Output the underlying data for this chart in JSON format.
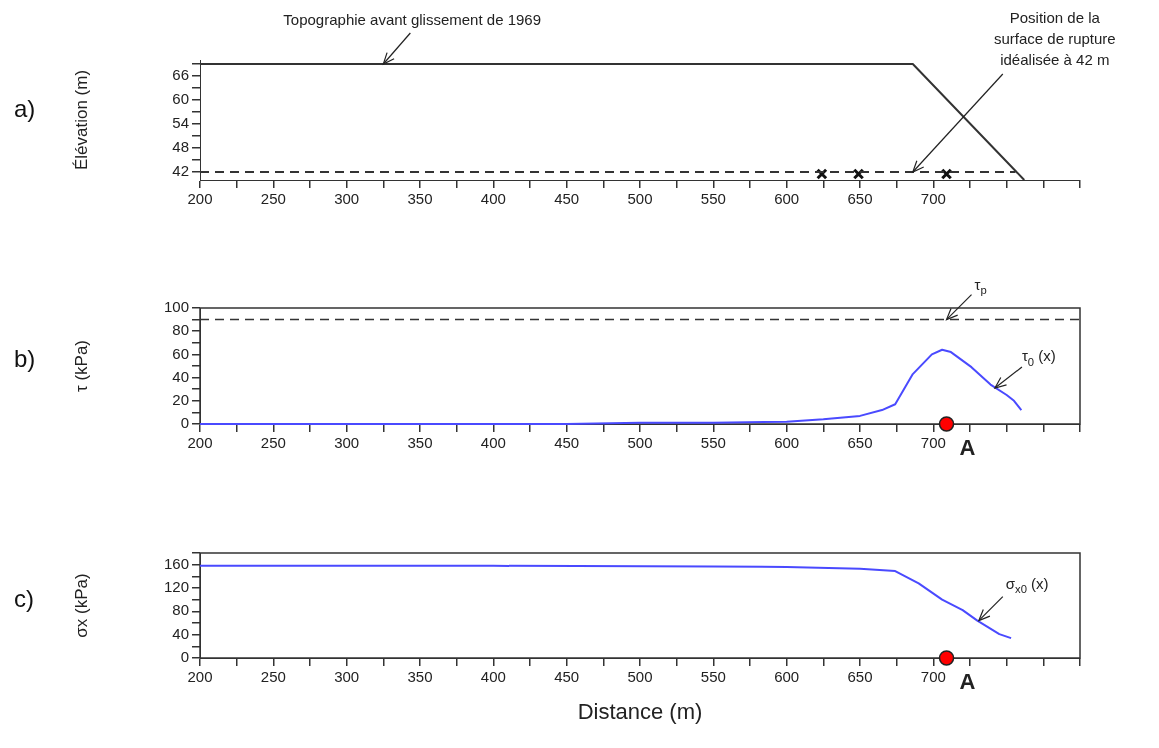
{
  "chart_data": [
    {
      "type": "line",
      "ylabel": "Élévation (m)",
      "xlim": [
        200,
        800
      ],
      "ylim": [
        40,
        70
      ],
      "xticks": [
        200,
        {
          "value": 225,
          "label": null
        },
        250,
        {
          "value": 275,
          "label": null
        },
        300,
        {
          "value": 325,
          "label": null
        },
        350,
        {
          "value": 375,
          "label": null
        },
        400,
        {
          "value": 425,
          "label": null
        },
        450,
        {
          "value": 475,
          "label": null
        },
        500,
        {
          "value": 525,
          "label": null
        },
        550,
        {
          "value": 575,
          "label": null
        },
        600,
        {
          "value": 625,
          "label": null
        },
        650,
        {
          "value": 675,
          "label": null
        },
        700,
        {
          "value": 725,
          "label": null
        },
        {
          "value": 750,
          "label": null
        },
        {
          "value": 775,
          "label": null
        },
        {
          "value": 800,
          "label": null
        }
      ],
      "yticks": [
        42,
        {
          "value": 45,
          "label": null
        },
        48,
        {
          "value": 51,
          "label": null
        },
        54,
        {
          "value": 57,
          "label": null
        },
        60,
        {
          "value": 63,
          "label": null
        },
        66,
        {
          "value": 69,
          "label": null
        }
      ],
      "series": [
        {
          "color": "#333333",
          "x": [
            200,
            686,
            762
          ],
          "values": [
            69,
            69,
            40
          ]
        },
        {
          "color": "#333333",
          "line_style": "dashed",
          "x": [
            200,
            756
          ],
          "values": [
            42,
            42
          ]
        },
        {
          "type": "scatter",
          "color": "#111111",
          "marker": "cross",
          "x": [
            624,
            649,
            709
          ],
          "values": [
            41.5,
            41.5,
            41.5
          ]
        }
      ],
      "annotations": [
        "a)",
        {
          "text": "Topographie avant glissement de 1969",
          "x": 325,
          "y": 69
        },
        {
          "text": "Position de la surface de rupture idéalisée à 42 m",
          "x": 686,
          "y": 42
        }
      ]
    },
    {
      "type": "line",
      "ylabel": "τ (kPa)",
      "xlim": [
        200,
        800
      ],
      "ylim": [
        0,
        100
      ],
      "xticks": [
        200,
        {
          "value": 225,
          "label": null
        },
        250,
        {
          "value": 275,
          "label": null
        },
        300,
        {
          "value": 325,
          "label": null
        },
        350,
        {
          "value": 375,
          "label": null
        },
        400,
        {
          "value": 425,
          "label": null
        },
        450,
        {
          "value": 475,
          "label": null
        },
        500,
        {
          "value": 525,
          "label": null
        },
        550,
        {
          "value": 575,
          "label": null
        },
        600,
        {
          "value": 625,
          "label": null
        },
        650,
        {
          "value": 675,
          "label": null
        },
        700,
        {
          "value": 725,
          "label": null
        },
        {
          "value": 750,
          "label": null
        },
        {
          "value": 775,
          "label": null
        },
        {
          "value": 800,
          "label": null
        }
      ],
      "yticks": [
        0,
        {
          "value": 10,
          "label": null
        },
        20,
        {
          "value": 30,
          "label": null
        },
        40,
        {
          "value": 50,
          "label": null
        },
        60,
        {
          "value": 70,
          "label": null
        },
        80,
        {
          "value": 90,
          "label": null
        },
        100
      ],
      "series": [
        {
          "color": "#4a4aff",
          "x": [
            200,
            400,
            450,
            500,
            550,
            600,
            625,
            650,
            665,
            674,
            686,
            699,
            706,
            712,
            726,
            739,
            750,
            755,
            760
          ],
          "values": [
            0,
            0,
            0,
            1,
            1,
            2,
            4,
            7,
            12,
            17,
            43,
            60,
            64,
            62,
            49,
            34,
            25,
            20,
            12
          ]
        },
        {
          "type": "scatter",
          "color": "#ff0000",
          "marker": "circle",
          "x": [
            709
          ],
          "values": [
            0
          ]
        }
      ],
      "ref_lines": [
        {
          "axis": "y",
          "value": 90,
          "color": "#333333",
          "line_style": "dashed"
        }
      ],
      "annotations": [
        "b)",
        {
          "text": "τ$_{p}$",
          "x": 709,
          "y": 90
        },
        {
          "text": "τ$_{0}$ (x)",
          "x": 742,
          "y": 31
        },
        {
          "text": "A",
          "x": 709,
          "y": 0
        }
      ]
    },
    {
      "type": "line",
      "ylabel": "σx (kPa)",
      "xlabel": "Distance (m)",
      "xlim": [
        200,
        800
      ],
      "ylim": [
        0,
        180
      ],
      "xticks": [
        200,
        {
          "value": 225,
          "label": null
        },
        250,
        {
          "value": 275,
          "label": null
        },
        300,
        {
          "value": 325,
          "label": null
        },
        350,
        {
          "value": 375,
          "label": null
        },
        400,
        {
          "value": 425,
          "label": null
        },
        450,
        {
          "value": 475,
          "label": null
        },
        500,
        {
          "value": 525,
          "label": null
        },
        550,
        {
          "value": 575,
          "label": null
        },
        600,
        {
          "value": 625,
          "label": null
        },
        650,
        {
          "value": 675,
          "label": null
        },
        700,
        {
          "value": 725,
          "label": null
        },
        {
          "value": 750,
          "label": null
        },
        {
          "value": 775,
          "label": null
        },
        {
          "value": 800,
          "label": null
        }
      ],
      "yticks": [
        0,
        {
          "value": 20,
          "label": null
        },
        40,
        {
          "value": 60,
          "label": null
        },
        80,
        {
          "value": 100,
          "label": null
        },
        120,
        {
          "value": 140,
          "label": null
        },
        160,
        {
          "value": 180,
          "label": null
        }
      ],
      "series": [
        {
          "color": "#4a4aff",
          "x": [
            200,
            400,
            550,
            600,
            650,
            674,
            690,
            706,
            720,
            730,
            745,
            753
          ],
          "values": [
            158,
            158,
            157,
            156,
            153,
            149,
            128,
            100,
            82,
            64,
            41,
            34
          ]
        },
        {
          "type": "scatter",
          "color": "#ff0000",
          "marker": "circle",
          "x": [
            709
          ],
          "values": [
            0
          ]
        }
      ],
      "annotations": [
        "c)",
        {
          "text": "σ$_{x0}$ (x)",
          "x": 731,
          "y": 64
        },
        {
          "text": "A",
          "x": 709,
          "y": 0
        }
      ]
    }
  ]
}
